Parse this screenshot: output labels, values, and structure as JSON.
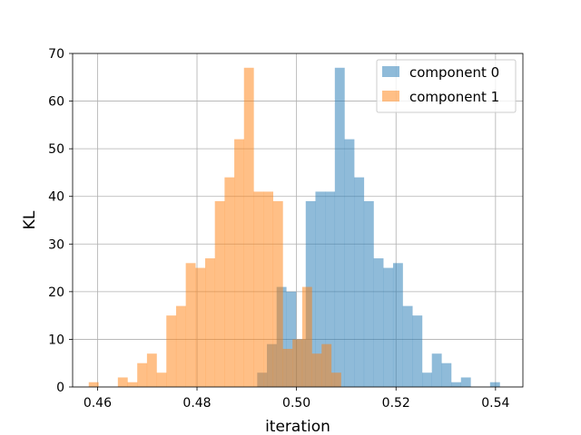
{
  "chart_data": {
    "type": "histogram",
    "xlabel": "iteration",
    "ylabel": "KL",
    "xlim": [
      0.455,
      0.5455
    ],
    "ylim": [
      0,
      70
    ],
    "xticks": [
      0.46,
      0.48,
      0.5,
      0.52,
      0.54
    ],
    "xtick_labels": [
      "0.46",
      "0.48",
      "0.50",
      "0.52",
      "0.54"
    ],
    "yticks": [
      0,
      10,
      20,
      30,
      40,
      50,
      60,
      70
    ],
    "ytick_labels": [
      "0",
      "10",
      "20",
      "30",
      "40",
      "50",
      "60",
      "70"
    ],
    "grid": true,
    "legend_position": "upper right",
    "series": [
      {
        "name": "component 0",
        "color": "#1f77b4",
        "alpha": 0.5,
        "bin_start": 0.4921,
        "bin_width": 0.00195,
        "counts": [
          3,
          9,
          21,
          20,
          10,
          39,
          41,
          41,
          67,
          52,
          44,
          39,
          27,
          25,
          26,
          17,
          15,
          3,
          7,
          5,
          1,
          2,
          0,
          0,
          1
        ]
      },
      {
        "name": "component 1",
        "color": "#ff7f0e",
        "alpha": 0.5,
        "bin_start": 0.45824,
        "bin_width": 0.00195,
        "counts": [
          1,
          0,
          0,
          2,
          1,
          5,
          7,
          3,
          15,
          17,
          26,
          25,
          27,
          39,
          44,
          52,
          67,
          41,
          41,
          39,
          8,
          10,
          21,
          7,
          9,
          3
        ]
      }
    ]
  }
}
